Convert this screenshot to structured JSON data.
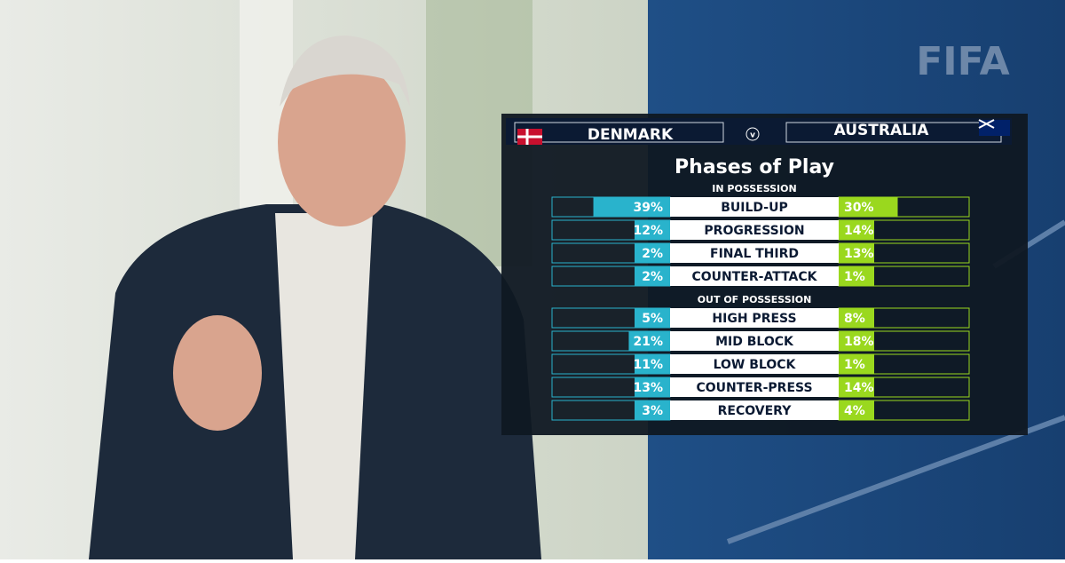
{
  "scene": {
    "logo": "FIFA",
    "versus": "v"
  },
  "title": "Phases of Play",
  "chart_data": [
    {
      "type": "diverging-bar",
      "subtitle": "IN POSSESSION",
      "categories": [
        "BUILD-UP",
        "PROGRESSION",
        "FINAL THIRD",
        "COUNTER-ATTACK"
      ],
      "xlim": [
        0,
        60
      ],
      "series": [
        {
          "name": "DENMARK",
          "color": "#29b3cc",
          "values": [
            39,
            12,
            2,
            2
          ],
          "value_labels": [
            "39%",
            "12%",
            "2%",
            "2%"
          ]
        },
        {
          "name": "AUSTRALIA",
          "color": "#9ad81e",
          "values": [
            30,
            14,
            13,
            1
          ],
          "value_labels": [
            "30%",
            "14%",
            "13%",
            "1%"
          ]
        }
      ]
    },
    {
      "type": "diverging-bar",
      "subtitle": "OUT OF POSSESSION",
      "categories": [
        "HIGH PRESS",
        "MID BLOCK",
        "LOW BLOCK",
        "COUNTER-PRESS",
        "RECOVERY"
      ],
      "xlim": [
        0,
        60
      ],
      "series": [
        {
          "color": "#29b3cc",
          "values": [
            5,
            21,
            11,
            13,
            3
          ],
          "value_labels": [
            "5%",
            "21%",
            "11%",
            "13%",
            "3%"
          ]
        },
        {
          "color": "#9ad81e",
          "values": [
            8,
            18,
            1,
            14,
            4
          ],
          "value_labels": [
            "8%",
            "18%",
            "1%",
            "14%",
            "4%"
          ]
        }
      ]
    }
  ]
}
